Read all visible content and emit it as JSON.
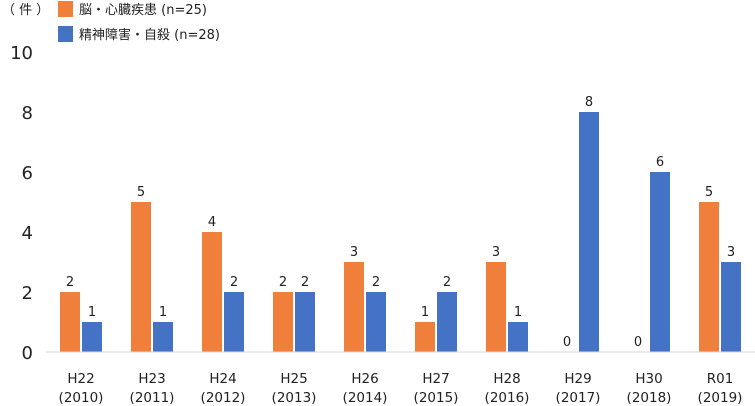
{
  "chart_data": {
    "type": "bar",
    "unit_label": "（ 件 ）",
    "categories": [
      {
        "line1": "H22",
        "line2": "(2010)"
      },
      {
        "line1": "H23",
        "line2": "(2011)"
      },
      {
        "line1": "H24",
        "line2": "(2012)"
      },
      {
        "line1": "H25",
        "line2": "(2013)"
      },
      {
        "line1": "H26",
        "line2": "(2014)"
      },
      {
        "line1": "H27",
        "line2": "(2015)"
      },
      {
        "line1": "H28",
        "line2": "(2016)"
      },
      {
        "line1": "H29",
        "line2": "(2017)"
      },
      {
        "line1": "H30",
        "line2": "(2018)"
      },
      {
        "line1": "R01",
        "line2": "(2019)"
      }
    ],
    "series": [
      {
        "name": "脳・心臓疾患 (n=25)",
        "color": "#f07f3c",
        "values": [
          2,
          5,
          4,
          2,
          3,
          1,
          3,
          0,
          0,
          5
        ]
      },
      {
        "name": "精神障害・自殺 (n=28)",
        "color": "#4472c4",
        "values": [
          1,
          1,
          2,
          2,
          2,
          2,
          1,
          8,
          6,
          3
        ]
      }
    ],
    "ylim": [
      0,
      10
    ],
    "yticks": [
      0,
      2,
      4,
      6,
      8,
      10
    ],
    "grid": false,
    "legend_position": "top-left"
  }
}
